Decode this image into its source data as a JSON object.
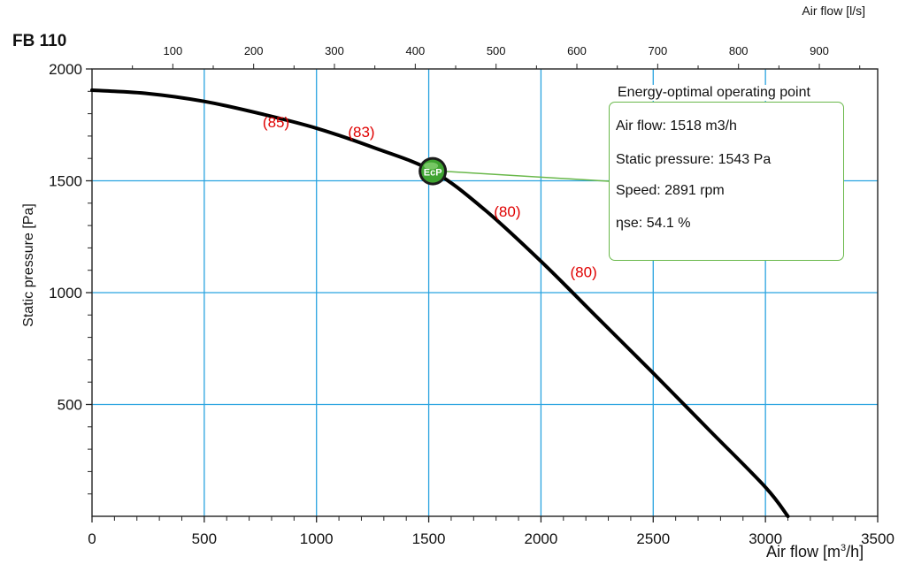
{
  "chart_title": "FB 110",
  "top_axis_label": "Air flow [l/s]",
  "x_axis_label_prefix": "Air flow [m",
  "x_axis_label_sup": "3",
  "x_axis_label_suffix": "/h]",
  "y_axis_label": "Static pressure [Pa]",
  "info": {
    "title": "Energy-optimal operating point",
    "air_flow": "Air flow: 1518 m3/h",
    "static_pressure": "Static pressure: 1543 Pa",
    "speed": "Speed: 2891 rpm",
    "efficiency": "ηse: 54.1 %"
  },
  "marker_label": "EcP",
  "colors": {
    "grid": "#29a3e0",
    "curve": "#000000",
    "efficiency_labels": "#e00000",
    "info_border": "#69b84a",
    "marker_fill": "#3fa431"
  },
  "chart_data": {
    "type": "line",
    "xlabel": "Air flow [m3/h]",
    "ylabel": "Static pressure [Pa]",
    "x2label": "Air flow [l/s]",
    "xlim": [
      0,
      3500
    ],
    "ylim": [
      0,
      2000
    ],
    "x_ticks": [
      0,
      500,
      1000,
      1500,
      2000,
      2500,
      3000,
      3500
    ],
    "y_ticks": [
      500,
      1000,
      1500,
      2000
    ],
    "x2_ticks": [
      100,
      200,
      300,
      400,
      500,
      600,
      700,
      800,
      900
    ],
    "grid": true,
    "series": [
      {
        "x": [
          0,
          250,
          500,
          750,
          1000,
          1250,
          1518,
          1750,
          2000,
          2250,
          2500,
          2750,
          3000,
          3100
        ],
        "y": [
          1905,
          1890,
          1855,
          1800,
          1735,
          1650,
          1543,
          1370,
          1140,
          890,
          640,
          385,
          130,
          0
        ]
      }
    ],
    "operating_point": {
      "x": 1518,
      "y": 1543
    },
    "efficiency_labels": [
      {
        "text": "(85)",
        "x": 820,
        "y": 1740
      },
      {
        "text": "(83)",
        "x": 1200,
        "y": 1695
      },
      {
        "text": "(80)",
        "x": 1850,
        "y": 1340
      },
      {
        "text": "(80)",
        "x": 2190,
        "y": 1070
      }
    ]
  }
}
